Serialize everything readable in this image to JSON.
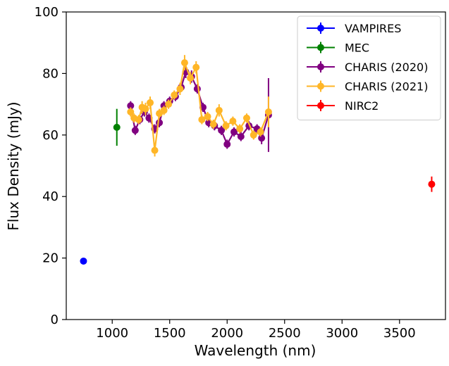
{
  "chart_data": {
    "type": "scatter",
    "title": "",
    "xlabel": "Wavelength (nm)",
    "ylabel": "Flux Density (mJy)",
    "xlim": [
      600,
      3900
    ],
    "ylim": [
      0,
      100
    ],
    "xticks": [
      1000,
      1500,
      2000,
      2500,
      3000,
      3500
    ],
    "yticks": [
      0,
      20,
      40,
      60,
      80,
      100
    ],
    "xtick_labels": [
      "1000",
      "1500",
      "2000",
      "2500",
      "3000",
      "3500"
    ],
    "ytick_labels": [
      "0",
      "20",
      "40",
      "60",
      "80",
      "100"
    ],
    "grid": false,
    "legend_position": "top-right",
    "series": [
      {
        "name": "VAMPIRES",
        "color": "#0000ff",
        "line": false,
        "x": [
          750
        ],
        "y": [
          19
        ],
        "yerr": [
          0.6
        ]
      },
      {
        "name": "MEC",
        "color": "#008000",
        "line": false,
        "x": [
          1040
        ],
        "y": [
          62.5
        ],
        "yerr": [
          6
        ]
      },
      {
        "name": "CHARIS (2020)",
        "color": "#800080",
        "line": true,
        "x": [
          1160,
          1200,
          1240,
          1280,
          1320,
          1370,
          1410,
          1450,
          1500,
          1550,
          1600,
          1640,
          1690,
          1740,
          1790,
          1840,
          1890,
          1950,
          2000,
          2060,
          2120,
          2190,
          2260,
          2300,
          2360
        ],
        "y": [
          69.5,
          61.5,
          65,
          67.5,
          65.5,
          62,
          64,
          69.5,
          71,
          72.5,
          75.5,
          80.5,
          79,
          75,
          69,
          64,
          63,
          61.5,
          57,
          61,
          59.5,
          63,
          62,
          59,
          66.5
        ],
        "yerr": [
          1.5,
          1.5,
          1.5,
          1.5,
          1.5,
          1.5,
          1.5,
          1.5,
          1.5,
          1.5,
          1.5,
          2,
          2,
          1.5,
          1.5,
          1.5,
          1.5,
          1.5,
          1.5,
          1.5,
          1.5,
          1.5,
          1.5,
          2,
          12
        ]
      },
      {
        "name": "CHARIS (2021)",
        "color": "#ffb627",
        "line": true,
        "x": [
          1160,
          1190,
          1230,
          1260,
          1290,
          1330,
          1370,
          1410,
          1450,
          1490,
          1540,
          1590,
          1630,
          1680,
          1730,
          1780,
          1830,
          1880,
          1930,
          1990,
          2050,
          2110,
          2170,
          2230,
          2290,
          2360
        ],
        "y": [
          67.5,
          65.5,
          65,
          69,
          68.5,
          70.5,
          55,
          67,
          68,
          70,
          73,
          75,
          83.5,
          78.5,
          82,
          65,
          66,
          63.5,
          68,
          63,
          64.5,
          62,
          65.5,
          60,
          61,
          67.5
        ],
        "yerr": [
          1.5,
          1.5,
          1.5,
          2,
          2,
          2,
          2,
          1.5,
          1.5,
          1.5,
          1.5,
          2,
          2.5,
          2,
          2,
          1.5,
          1.5,
          1.5,
          2,
          1.5,
          1.5,
          1.5,
          1.5,
          1.5,
          1.5,
          5
        ]
      },
      {
        "name": "NIRC2",
        "color": "#ff0000",
        "line": false,
        "x": [
          3780
        ],
        "y": [
          44
        ],
        "yerr": [
          2.5
        ]
      }
    ]
  }
}
